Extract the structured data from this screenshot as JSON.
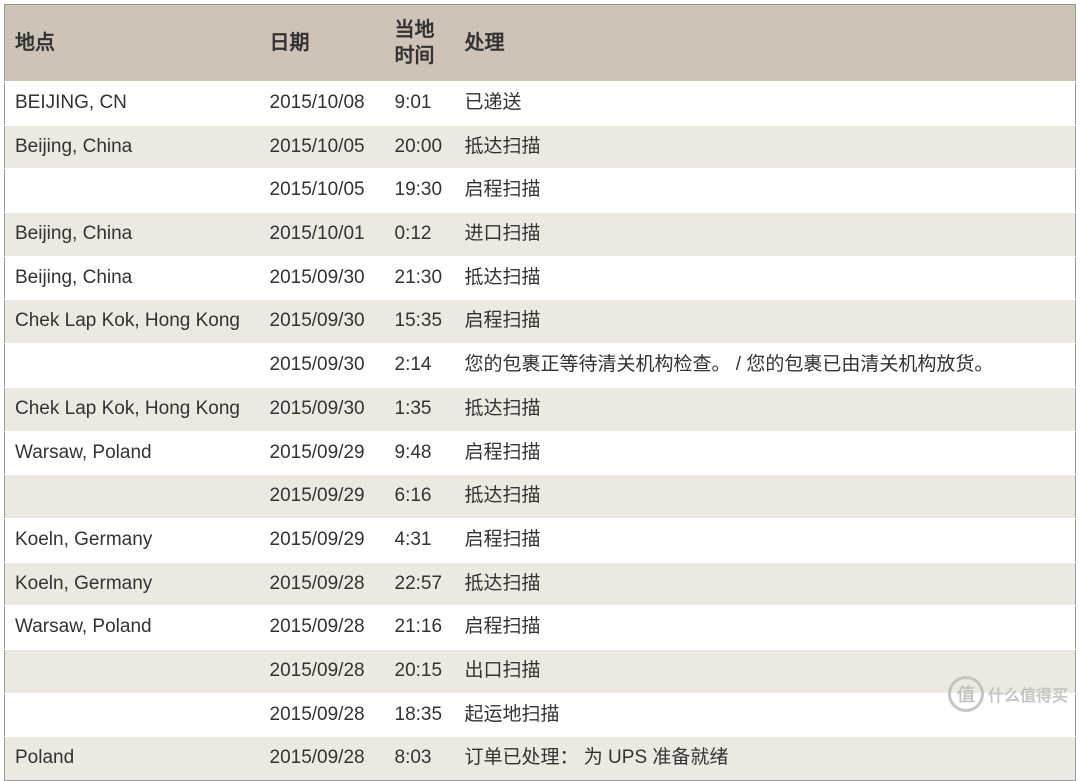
{
  "table": {
    "columns": [
      {
        "key": "location",
        "label": "地点",
        "class": "col-location"
      },
      {
        "key": "date",
        "label": "日期",
        "class": "col-date"
      },
      {
        "key": "time",
        "label": "当地时间",
        "class": "col-time"
      },
      {
        "key": "status",
        "label": "处理",
        "class": "col-status"
      }
    ],
    "rows": [
      {
        "location": "BEIJING, CN",
        "date": "2015/10/08",
        "time": "9:01",
        "status": "已递送"
      },
      {
        "location": "Beijing, China",
        "date": "2015/10/05",
        "time": "20:00",
        "status": "抵达扫描"
      },
      {
        "location": "",
        "date": "2015/10/05",
        "time": "19:30",
        "status": "启程扫描"
      },
      {
        "location": "Beijing, China",
        "date": "2015/10/01",
        "time": "0:12",
        "status": "进口扫描"
      },
      {
        "location": "Beijing, China",
        "date": "2015/09/30",
        "time": "21:30",
        "status": "抵达扫描"
      },
      {
        "location": "Chek Lap Kok, Hong Kong",
        "date": "2015/09/30",
        "time": "15:35",
        "status": "启程扫描"
      },
      {
        "location": "",
        "date": "2015/09/30",
        "time": "2:14",
        "status": "您的包裹正等待清关机构检查。 / 您的包裹已由清关机构放货。"
      },
      {
        "location": "Chek Lap Kok, Hong Kong",
        "date": "2015/09/30",
        "time": "1:35",
        "status": "抵达扫描"
      },
      {
        "location": "Warsaw, Poland",
        "date": "2015/09/29",
        "time": "9:48",
        "status": "启程扫描"
      },
      {
        "location": "",
        "date": "2015/09/29",
        "time": "6:16",
        "status": "抵达扫描"
      },
      {
        "location": "Koeln, Germany",
        "date": "2015/09/29",
        "time": "4:31",
        "status": "启程扫描"
      },
      {
        "location": "Koeln, Germany",
        "date": "2015/09/28",
        "time": "22:57",
        "status": "抵达扫描"
      },
      {
        "location": "Warsaw, Poland",
        "date": "2015/09/28",
        "time": "21:16",
        "status": "启程扫描"
      },
      {
        "location": "",
        "date": "2015/09/28",
        "time": "20:15",
        "status": "出口扫描"
      },
      {
        "location": "",
        "date": "2015/09/28",
        "time": "18:35",
        "status": "起运地扫描"
      },
      {
        "location": "Poland",
        "date": "2015/09/28",
        "time": "8:03",
        "status": "订单已处理： 为 UPS 准备就绪"
      }
    ],
    "header_bg": "#cdc3b7",
    "row_even_bg": "#ffffff",
    "row_odd_bg": "#ece8e2",
    "border_color": "#999999",
    "text_color": "#333333",
    "header_fontsize": 20,
    "body_fontsize": 19
  },
  "watermark": {
    "badge_text": "值",
    "text": "什么值得买"
  }
}
